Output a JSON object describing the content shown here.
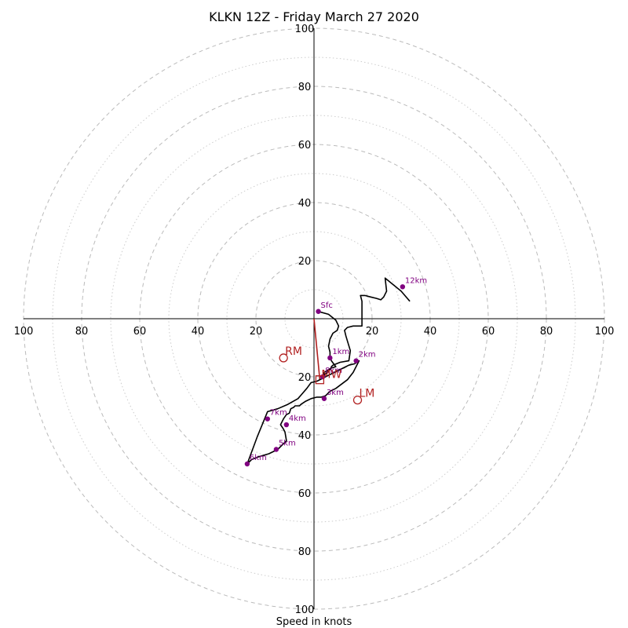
{
  "chart_data": {
    "type": "hodograph",
    "title": "KLKN 12Z - Friday March 27 2020",
    "xlabel": "Speed in knots",
    "ring_max": 100,
    "major_rings": [
      20,
      40,
      60,
      80,
      100
    ],
    "minor_rings": [
      10,
      30,
      50,
      70,
      90
    ],
    "tick_labels_x": [
      "100",
      "80",
      "60",
      "40",
      "20",
      "20",
      "40",
      "60",
      "80",
      "100"
    ],
    "tick_labels_y_top": [
      "100",
      "80",
      "60",
      "40",
      "20"
    ],
    "tick_labels_y_bottom": [
      "20",
      "40",
      "60",
      "80",
      "100"
    ],
    "hodograph_line": [
      [
        1.5,
        2.5
      ],
      [
        5,
        1.5
      ],
      [
        7.5,
        -0.5
      ],
      [
        8.5,
        -2.5
      ],
      [
        8,
        -4
      ],
      [
        6.5,
        -5
      ],
      [
        5.5,
        -7
      ],
      [
        5,
        -9.5
      ],
      [
        5.5,
        -11.5
      ],
      [
        5.5,
        -13
      ],
      [
        6,
        -14.5
      ],
      [
        7.5,
        -16.5
      ],
      [
        6,
        -17
      ],
      [
        5,
        -17.5
      ],
      [
        3.5,
        -18.5
      ],
      [
        3.5,
        -19
      ],
      [
        2.5,
        -20
      ],
      [
        3,
        -20.5
      ],
      [
        5,
        -19.5
      ],
      [
        7,
        -18.5
      ],
      [
        10,
        -17
      ],
      [
        12,
        -16
      ],
      [
        14,
        -15.5
      ],
      [
        15.5,
        -14.5
      ],
      [
        13.5,
        -18.5
      ],
      [
        11.5,
        -21
      ],
      [
        9.5,
        -22.5
      ],
      [
        7.5,
        -24
      ],
      [
        5.5,
        -25
      ],
      [
        4,
        -26.5
      ],
      [
        2.5,
        -27
      ],
      [
        1,
        -27
      ],
      [
        -1,
        -27.5
      ],
      [
        -2,
        -28
      ],
      [
        -3,
        -28.5
      ],
      [
        -4.5,
        -29.5
      ],
      [
        -5,
        -30
      ],
      [
        -6.5,
        -30
      ],
      [
        -7,
        -30.5
      ],
      [
        -8,
        -31
      ],
      [
        -8.5,
        -32.5
      ],
      [
        -9.5,
        -33
      ],
      [
        -10.5,
        -34.5
      ],
      [
        -11.5,
        -36.5
      ],
      [
        -10.5,
        -38
      ],
      [
        -10,
        -39
      ],
      [
        -9.5,
        -42
      ],
      [
        -12.5,
        -45
      ],
      [
        -15.5,
        -46.5
      ],
      [
        -19,
        -47.5
      ],
      [
        -21.5,
        -48.5
      ],
      [
        -23,
        -50
      ],
      [
        -19.5,
        -40.5
      ],
      [
        -16,
        -32
      ],
      [
        -12.5,
        -31
      ],
      [
        -9,
        -29.5
      ],
      [
        -5.5,
        -27.5
      ],
      [
        -2.5,
        -24
      ],
      [
        -1,
        -22
      ],
      [
        1,
        -21.5
      ],
      [
        3,
        -20.5
      ],
      [
        3.5,
        -19.5
      ],
      [
        5,
        -18
      ],
      [
        5.5,
        -17.5
      ],
      [
        6,
        -16.5
      ],
      [
        6.5,
        -16
      ],
      [
        9,
        -15
      ],
      [
        12,
        -14.5
      ],
      [
        12.5,
        -11
      ],
      [
        11,
        -6
      ],
      [
        10.5,
        -4
      ],
      [
        11.5,
        -3
      ],
      [
        13.5,
        -2.5
      ],
      [
        16.5,
        -2.5
      ],
      [
        16.5,
        -0.5
      ],
      [
        16.5,
        2
      ],
      [
        16.5,
        4
      ],
      [
        16.5,
        6
      ],
      [
        16,
        8
      ],
      [
        17.5,
        8
      ],
      [
        19.5,
        7.5
      ],
      [
        21.5,
        7
      ],
      [
        23,
        6.5
      ],
      [
        24,
        7.5
      ],
      [
        25,
        9.5
      ],
      [
        24.5,
        14
      ],
      [
        27.5,
        11.5
      ],
      [
        30,
        9.5
      ],
      [
        33,
        6
      ]
    ],
    "height_markers": [
      {
        "label": "Sfc",
        "x": 1.5,
        "y": 2.5
      },
      {
        "label": "1km",
        "x": 5.5,
        "y": -13.5
      },
      {
        "label": "2km",
        "x": 14.5,
        "y": -14.5
      },
      {
        "label": "3km",
        "x": 3.5,
        "y": -27.5
      },
      {
        "label": "4km",
        "x": -9.5,
        "y": -36.5
      },
      {
        "label": "5km",
        "x": -13,
        "y": -45
      },
      {
        "label": "6km",
        "x": -23,
        "y": -50
      },
      {
        "label": "7km",
        "x": -16,
        "y": -34.5
      },
      {
        "label": "8km",
        "x": 3,
        "y": -20
      },
      {
        "label": "12km",
        "x": 30.5,
        "y": 11
      }
    ],
    "storm_motion": [
      {
        "label": "RM",
        "x": -10.5,
        "y": -13.5
      },
      {
        "label": "LM",
        "x": 15,
        "y": -28
      }
    ],
    "mean_wind": {
      "label": "MW",
      "x": 2,
      "y": -21
    },
    "shear_vector": {
      "x1": 0,
      "y1": 0,
      "x2": 2,
      "y2": -21
    },
    "colors": {
      "hodograph": "#000000",
      "markers": "#800080",
      "motion": "#b22222",
      "grid": "#bbbbbb",
      "axes": "#000000"
    }
  }
}
